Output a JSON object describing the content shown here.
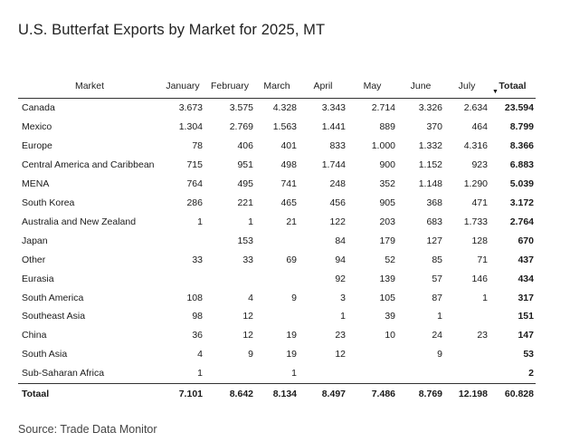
{
  "title": "U.S. Butterfat Exports by Market for 2025, MT",
  "source": "Source: Trade Data Monitor",
  "chart_data": {
    "type": "table",
    "columns": [
      "Market",
      "January",
      "February",
      "March",
      "April",
      "May",
      "June",
      "July",
      "Totaal"
    ],
    "sorted_column": "Totaal",
    "rows": [
      [
        "Canada",
        "3.673",
        "3.575",
        "4.328",
        "3.343",
        "2.714",
        "3.326",
        "2.634",
        "23.594"
      ],
      [
        "Mexico",
        "1.304",
        "2.769",
        "1.563",
        "1.441",
        "889",
        "370",
        "464",
        "8.799"
      ],
      [
        "Europe",
        "78",
        "406",
        "401",
        "833",
        "1.000",
        "1.332",
        "4.316",
        "8.366"
      ],
      [
        "Central America and Caribbean",
        "715",
        "951",
        "498",
        "1.744",
        "900",
        "1.152",
        "923",
        "6.883"
      ],
      [
        "MENA",
        "764",
        "495",
        "741",
        "248",
        "352",
        "1.148",
        "1.290",
        "5.039"
      ],
      [
        "South Korea",
        "286",
        "221",
        "465",
        "456",
        "905",
        "368",
        "471",
        "3.172"
      ],
      [
        "Australia and New Zealand",
        "1",
        "1",
        "21",
        "122",
        "203",
        "683",
        "1.733",
        "2.764"
      ],
      [
        "Japan",
        "",
        "153",
        "",
        "84",
        "179",
        "127",
        "128",
        "670"
      ],
      [
        "Other",
        "33",
        "33",
        "69",
        "94",
        "52",
        "85",
        "71",
        "437"
      ],
      [
        "Eurasia",
        "",
        "",
        "",
        "92",
        "139",
        "57",
        "146",
        "434"
      ],
      [
        "South America",
        "108",
        "4",
        "9",
        "3",
        "105",
        "87",
        "1",
        "317"
      ],
      [
        "Southeast Asia",
        "98",
        "12",
        "",
        "1",
        "39",
        "1",
        "",
        "151"
      ],
      [
        "China",
        "36",
        "12",
        "19",
        "23",
        "10",
        "24",
        "23",
        "147"
      ],
      [
        "South Asia",
        "4",
        "9",
        "19",
        "12",
        "",
        "9",
        "",
        "53"
      ],
      [
        "Sub-Saharan Africa",
        "1",
        "",
        "1",
        "",
        "",
        "",
        "",
        "2"
      ]
    ],
    "total_row": [
      "Totaal",
      "7.101",
      "8.642",
      "8.134",
      "8.497",
      "7.486",
      "8.769",
      "12.198",
      "60.828"
    ]
  }
}
